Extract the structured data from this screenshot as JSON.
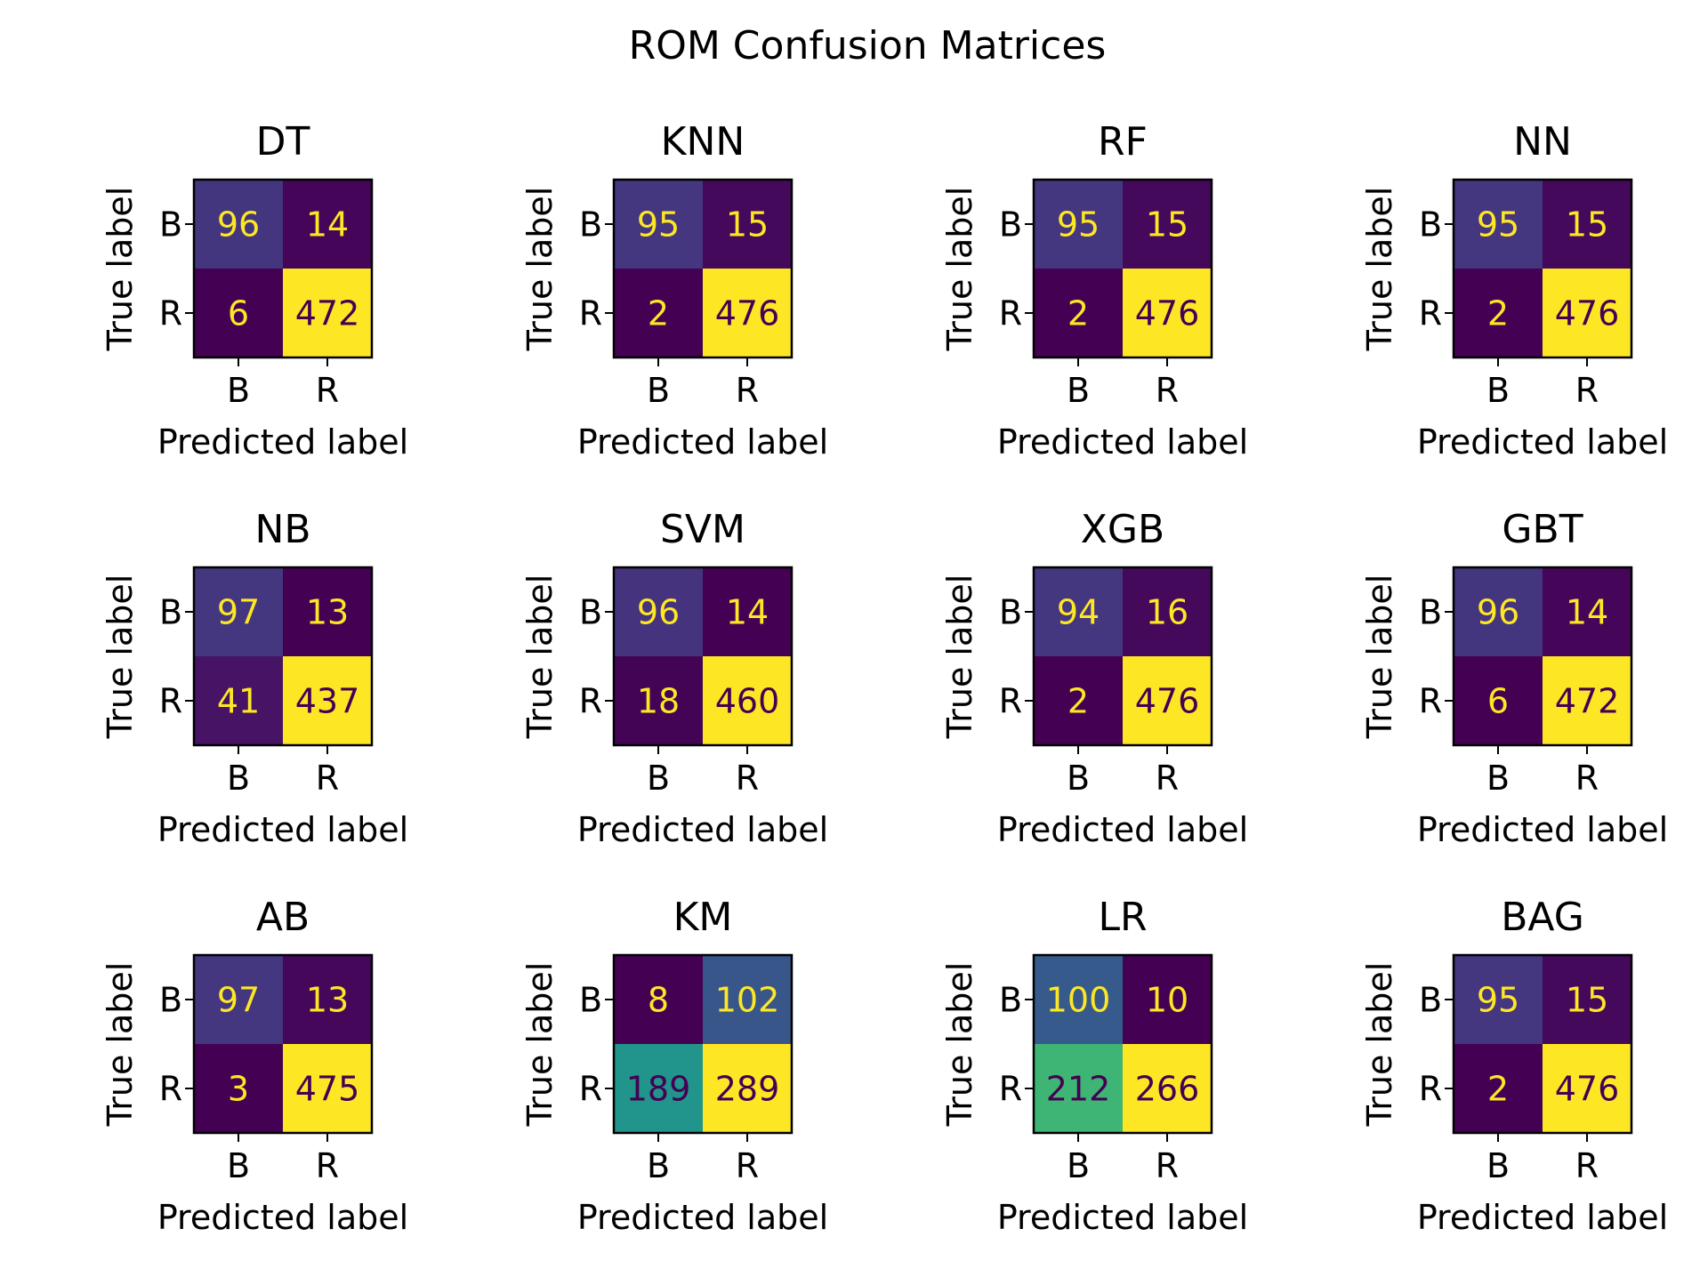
{
  "figure": {
    "title": "ROM Confusion Matrices"
  },
  "chart_data": [
    {
      "type": "heatmap",
      "title": "DT",
      "xlabel": "Predicted label",
      "ylabel": "True label",
      "x_categories": [
        "B",
        "R"
      ],
      "y_categories": [
        "B",
        "R"
      ],
      "values": [
        [
          96,
          14
        ],
        [
          6,
          472
        ]
      ]
    },
    {
      "type": "heatmap",
      "title": "KNN",
      "xlabel": "Predicted label",
      "ylabel": "True label",
      "x_categories": [
        "B",
        "R"
      ],
      "y_categories": [
        "B",
        "R"
      ],
      "values": [
        [
          95,
          15
        ],
        [
          2,
          476
        ]
      ]
    },
    {
      "type": "heatmap",
      "title": "RF",
      "xlabel": "Predicted label",
      "ylabel": "True label",
      "x_categories": [
        "B",
        "R"
      ],
      "y_categories": [
        "B",
        "R"
      ],
      "values": [
        [
          95,
          15
        ],
        [
          2,
          476
        ]
      ]
    },
    {
      "type": "heatmap",
      "title": "NN",
      "xlabel": "Predicted label",
      "ylabel": "True label",
      "x_categories": [
        "B",
        "R"
      ],
      "y_categories": [
        "B",
        "R"
      ],
      "values": [
        [
          95,
          15
        ],
        [
          2,
          476
        ]
      ]
    },
    {
      "type": "heatmap",
      "title": "NB",
      "xlabel": "Predicted label",
      "ylabel": "True label",
      "x_categories": [
        "B",
        "R"
      ],
      "y_categories": [
        "B",
        "R"
      ],
      "values": [
        [
          97,
          13
        ],
        [
          41,
          437
        ]
      ]
    },
    {
      "type": "heatmap",
      "title": "SVM",
      "xlabel": "Predicted label",
      "ylabel": "True label",
      "x_categories": [
        "B",
        "R"
      ],
      "y_categories": [
        "B",
        "R"
      ],
      "values": [
        [
          96,
          14
        ],
        [
          18,
          460
        ]
      ]
    },
    {
      "type": "heatmap",
      "title": "XGB",
      "xlabel": "Predicted label",
      "ylabel": "True label",
      "x_categories": [
        "B",
        "R"
      ],
      "y_categories": [
        "B",
        "R"
      ],
      "values": [
        [
          94,
          16
        ],
        [
          2,
          476
        ]
      ]
    },
    {
      "type": "heatmap",
      "title": "GBT",
      "xlabel": "Predicted label",
      "ylabel": "True label",
      "x_categories": [
        "B",
        "R"
      ],
      "y_categories": [
        "B",
        "R"
      ],
      "values": [
        [
          96,
          14
        ],
        [
          6,
          472
        ]
      ]
    },
    {
      "type": "heatmap",
      "title": "AB",
      "xlabel": "Predicted label",
      "ylabel": "True label",
      "x_categories": [
        "B",
        "R"
      ],
      "y_categories": [
        "B",
        "R"
      ],
      "values": [
        [
          97,
          13
        ],
        [
          3,
          475
        ]
      ]
    },
    {
      "type": "heatmap",
      "title": "KM",
      "xlabel": "Predicted label",
      "ylabel": "True label",
      "x_categories": [
        "B",
        "R"
      ],
      "y_categories": [
        "B",
        "R"
      ],
      "values": [
        [
          8,
          102
        ],
        [
          189,
          289
        ]
      ]
    },
    {
      "type": "heatmap",
      "title": "LR",
      "xlabel": "Predicted label",
      "ylabel": "True label",
      "x_categories": [
        "B",
        "R"
      ],
      "y_categories": [
        "B",
        "R"
      ],
      "values": [
        [
          100,
          10
        ],
        [
          212,
          266
        ]
      ]
    },
    {
      "type": "heatmap",
      "title": "BAG",
      "xlabel": "Predicted label",
      "ylabel": "True label",
      "x_categories": [
        "B",
        "R"
      ],
      "y_categories": [
        "B",
        "R"
      ],
      "values": [
        [
          95,
          15
        ],
        [
          2,
          476
        ]
      ]
    }
  ],
  "colormap": "viridis",
  "colors": {
    "text_on_dark": "#fde725",
    "text_on_light": "#440154",
    "axis": "#000000"
  }
}
